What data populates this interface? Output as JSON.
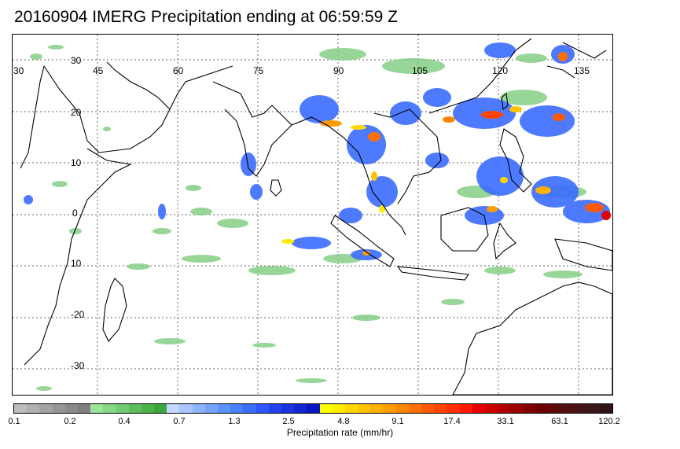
{
  "title": "20160904 IMERG Precipitation ending at 06:59:59 Z",
  "map": {
    "lon_labels": [
      "30",
      "45",
      "60",
      "75",
      "90",
      "105",
      "120",
      "135"
    ],
    "lat_labels": [
      "30",
      "20",
      "10",
      "0",
      "10",
      "-20",
      "-30"
    ],
    "grid": "dotted",
    "coastline_color": "#000000"
  },
  "legend": {
    "caption": "Precipitation rate (mm/hr)",
    "tick_labels": [
      "0.1",
      "0.2",
      "0.4",
      "0.7",
      "1.3",
      "2.5",
      "4.8",
      "9.1",
      "17.4",
      "33.1",
      "63.1",
      "120.2"
    ],
    "colors": [
      "#bdbdbd",
      "#b0b0b0",
      "#a3a3a3",
      "#969696",
      "#8a8a8a",
      "#7f7f7f",
      "#9ce39c",
      "#86d886",
      "#70cc70",
      "#5cbf5c",
      "#4ab34a",
      "#3ca63c",
      "#c6d8ff",
      "#a9c6ff",
      "#8cb4ff",
      "#74a4ff",
      "#5c92ff",
      "#4682ff",
      "#3a6cff",
      "#2e58ff",
      "#2244f0",
      "#1a34e0",
      "#1226d0",
      "#0a16c0",
      "#ffff00",
      "#ffec00",
      "#ffd800",
      "#ffc400",
      "#ffb000",
      "#ff9c00",
      "#ff8600",
      "#ff7000",
      "#ff5a00",
      "#ff4400",
      "#ff2e00",
      "#ff1800",
      "#e60000",
      "#cc0000",
      "#b30000",
      "#990000",
      "#800000",
      "#6b0000",
      "#5e0a0a",
      "#521010",
      "#461414",
      "#3a1616",
      "#2e1616"
    ]
  }
}
